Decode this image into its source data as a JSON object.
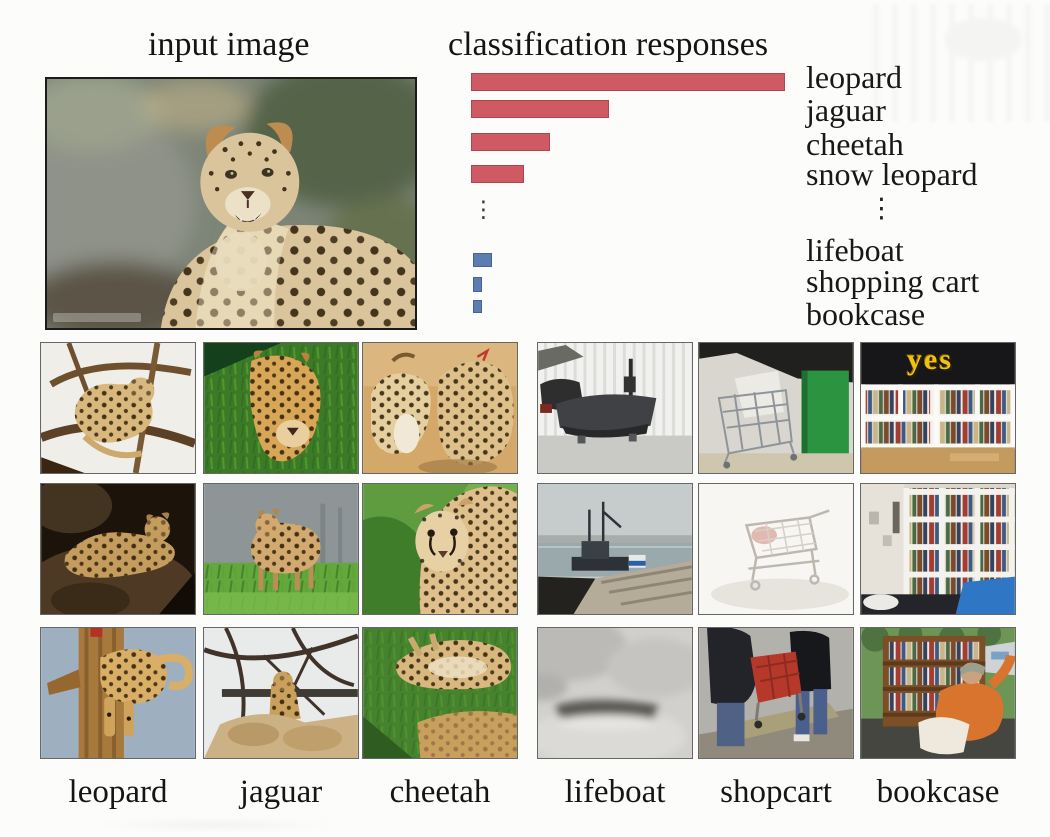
{
  "header": {
    "input_title": "input image",
    "chart_title": "classification responses"
  },
  "chart_data": {
    "type": "bar",
    "orientation": "horizontal",
    "title": "classification responses",
    "categories": [
      "leopard",
      "jaguar",
      "cheetah",
      "snow leopard",
      "lifeboat",
      "shopping cart",
      "bookcase"
    ],
    "values": [
      1.0,
      0.44,
      0.25,
      0.17,
      0.06,
      0.03,
      0.03
    ],
    "value_scale": "relative response, max-normalized (no numeric axis shown)",
    "group_colors": {
      "animal_classes": "#cf5a63",
      "object_classes": "#5d7cb2"
    },
    "ellipsis": "⋮",
    "grid": false,
    "legend_position": "none"
  },
  "gallery": {
    "footer_labels": [
      "leopard",
      "jaguar",
      "cheetah",
      "lifeboat",
      "shopcart",
      "bookcase"
    ],
    "bookcase_overlay_text": "yes"
  }
}
